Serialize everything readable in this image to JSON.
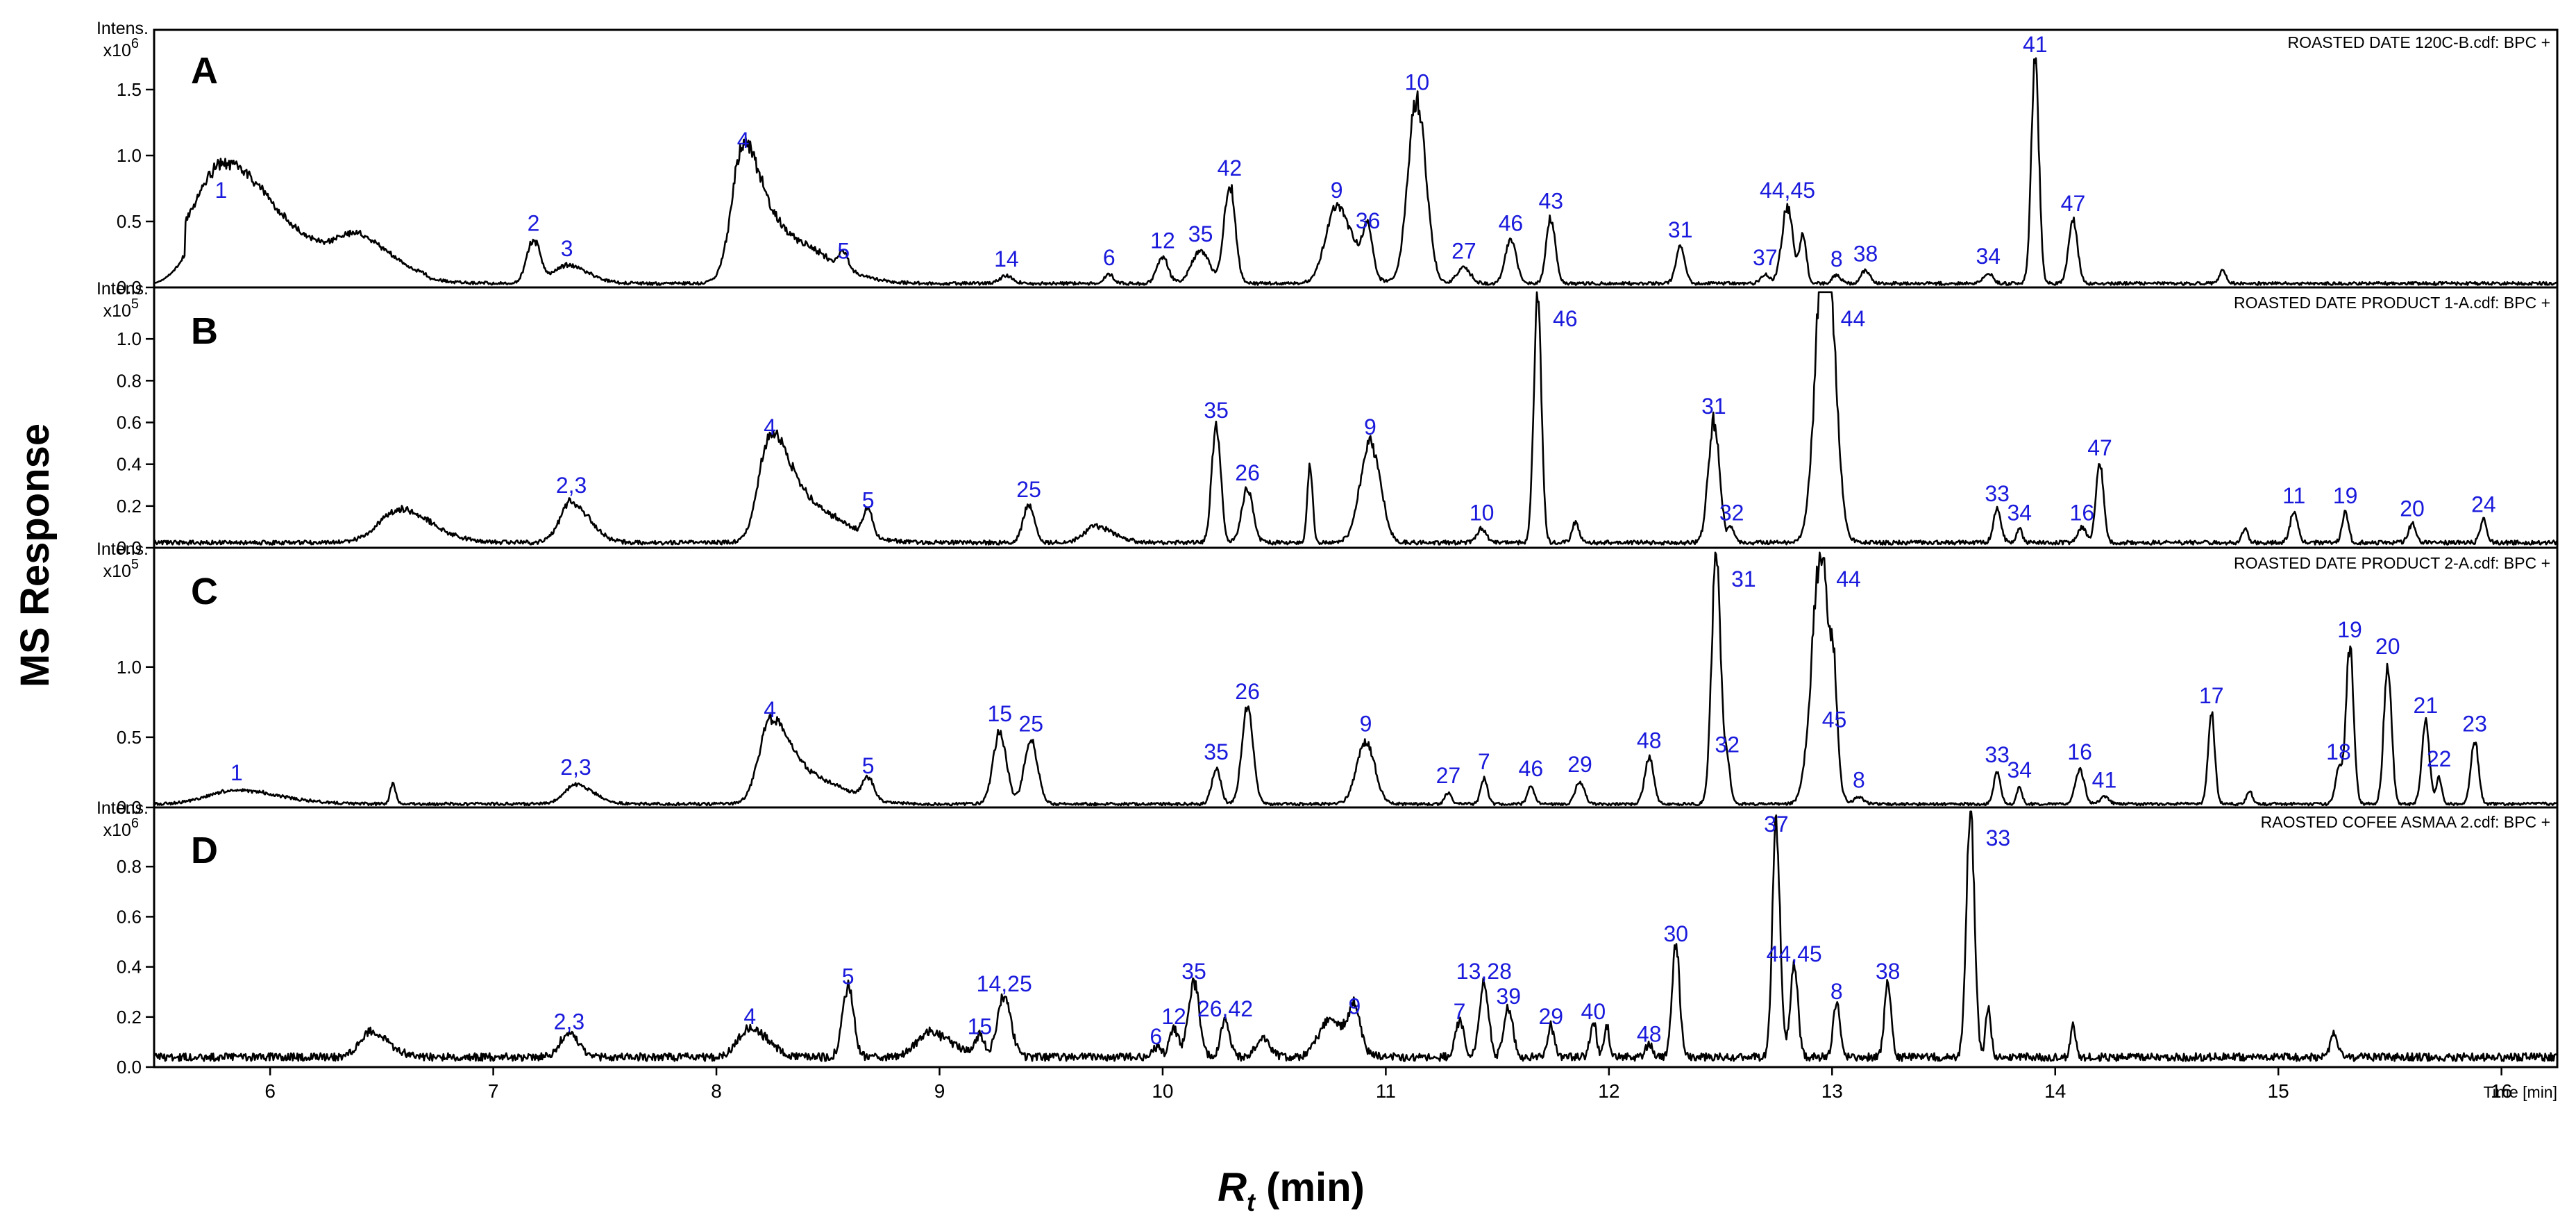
{
  "chart_data": {
    "type": "line",
    "subtype": "stacked chromatograms",
    "ylabel": "MS Response",
    "xlabel_main": "R",
    "xlabel_sub": "t",
    "xlabel_unit": " (min)",
    "xaxis_unit_label": "Time [min]",
    "xlim": [
      5.48,
      16.25
    ],
    "xticks": [
      6,
      7,
      8,
      9,
      10,
      11,
      12,
      13,
      14,
      15,
      16
    ],
    "panels": [
      {
        "letter": "A",
        "file": "ROASTED DATE 120C-B.cdf: BPC +",
        "intens": "Intens.",
        "scale_base": "x10",
        "scale_exp": "6",
        "ylim": [
          0,
          1.9
        ],
        "yticks": [
          "0.0",
          "0.5",
          "1.0",
          "1.5"
        ],
        "ytick_values": [
          0,
          0.5,
          1.0,
          1.5
        ],
        "baseline": 0.03,
        "peaks": [
          {
            "label": "1",
            "rt": 5.78,
            "h": 0.58,
            "w": 0.11
          },
          {
            "label": "",
            "rt": 5.98,
            "h": 0.28,
            "w": 0.2
          },
          {
            "label": "",
            "rt": 6.4,
            "h": 0.22,
            "w": 0.09
          },
          {
            "label": "2",
            "rt": 7.18,
            "h": 0.33,
            "w": 0.03
          },
          {
            "label": "3",
            "rt": 7.33,
            "h": 0.14,
            "w": 0.06
          },
          {
            "label": "4",
            "rt": 8.12,
            "h": 0.96,
            "w": 0.05
          },
          {
            "label": "",
            "rt": 8.3,
            "h": 0.35,
            "w": 0.12
          },
          {
            "label": "5",
            "rt": 8.57,
            "h": 0.12,
            "w": 0.02
          },
          {
            "label": "14",
            "rt": 9.3,
            "h": 0.06,
            "w": 0.03
          },
          {
            "label": "6",
            "rt": 9.76,
            "h": 0.07,
            "w": 0.02
          },
          {
            "label": "12",
            "rt": 10.0,
            "h": 0.2,
            "w": 0.025
          },
          {
            "label": "35",
            "rt": 10.17,
            "h": 0.25,
            "w": 0.04
          },
          {
            "label": "42",
            "rt": 10.3,
            "h": 0.75,
            "w": 0.025
          },
          {
            "label": "9",
            "rt": 10.78,
            "h": 0.58,
            "w": 0.05
          },
          {
            "label": "36",
            "rt": 10.92,
            "h": 0.35,
            "w": 0.02
          },
          {
            "label": "10",
            "rt": 11.14,
            "h": 1.4,
            "w": 0.04
          },
          {
            "label": "27",
            "rt": 11.35,
            "h": 0.12,
            "w": 0.03
          },
          {
            "label": "46",
            "rt": 11.56,
            "h": 0.33,
            "w": 0.025
          },
          {
            "label": "43",
            "rt": 11.74,
            "h": 0.5,
            "w": 0.02
          },
          {
            "label": "31",
            "rt": 12.32,
            "h": 0.28,
            "w": 0.02
          },
          {
            "label": "37",
            "rt": 12.7,
            "h": 0.07,
            "w": 0.02
          },
          {
            "label": "44,45",
            "rt": 12.8,
            "h": 0.58,
            "w": 0.025
          },
          {
            "label": "",
            "rt": 12.87,
            "h": 0.35,
            "w": 0.015
          },
          {
            "label": "8",
            "rt": 13.02,
            "h": 0.06,
            "w": 0.02
          },
          {
            "label": "38",
            "rt": 13.15,
            "h": 0.1,
            "w": 0.02
          },
          {
            "label": "34",
            "rt": 13.7,
            "h": 0.08,
            "w": 0.02
          },
          {
            "label": "41",
            "rt": 13.91,
            "h": 1.7,
            "w": 0.017
          },
          {
            "label": "47",
            "rt": 14.08,
            "h": 0.48,
            "w": 0.02
          },
          {
            "label": "",
            "rt": 14.75,
            "h": 0.1,
            "w": 0.015
          }
        ]
      },
      {
        "letter": "B",
        "file": "ROASTED DATE PRODUCT 1-A.cdf: BPC +",
        "intens": "Intens.",
        "scale_base": "x10",
        "scale_exp": "5",
        "ylim": [
          0,
          1.2
        ],
        "yticks": [
          "0.0",
          "0.2",
          "0.4",
          "0.6",
          "0.8",
          "1.0"
        ],
        "ytick_values": [
          0,
          0.2,
          0.4,
          0.6,
          0.8,
          1.0
        ],
        "baseline": 0.025,
        "peaks": [
          {
            "label": "",
            "rt": 6.58,
            "h": 0.16,
            "w": 0.09
          },
          {
            "label": "2,3",
            "rt": 7.35,
            "h": 0.2,
            "w": 0.05
          },
          {
            "label": "4",
            "rt": 8.24,
            "h": 0.48,
            "w": 0.05
          },
          {
            "label": "",
            "rt": 8.4,
            "h": 0.18,
            "w": 0.1
          },
          {
            "label": "5",
            "rt": 8.68,
            "h": 0.13,
            "w": 0.02
          },
          {
            "label": "25",
            "rt": 9.4,
            "h": 0.18,
            "w": 0.025
          },
          {
            "label": "",
            "rt": 9.7,
            "h": 0.08,
            "w": 0.05
          },
          {
            "label": "35",
            "rt": 10.24,
            "h": 0.56,
            "w": 0.02
          },
          {
            "label": "26",
            "rt": 10.38,
            "h": 0.26,
            "w": 0.025
          },
          {
            "label": "",
            "rt": 10.66,
            "h": 0.36,
            "w": 0.012
          },
          {
            "label": "9",
            "rt": 10.93,
            "h": 0.48,
            "w": 0.045
          },
          {
            "label": "10",
            "rt": 11.43,
            "h": 0.07,
            "w": 0.02
          },
          {
            "label": "46",
            "rt": 11.68,
            "h": 1.2,
            "w": 0.017
          },
          {
            "label": "",
            "rt": 11.85,
            "h": 0.1,
            "w": 0.015
          },
          {
            "label": "31",
            "rt": 12.47,
            "h": 0.58,
            "w": 0.025
          },
          {
            "label": "32",
            "rt": 12.55,
            "h": 0.07,
            "w": 0.015
          },
          {
            "label": "44",
            "rt": 12.97,
            "h": 1.6,
            "w": 0.04
          },
          {
            "label": "33",
            "rt": 13.74,
            "h": 0.16,
            "w": 0.017
          },
          {
            "label": "34",
            "rt": 13.84,
            "h": 0.07,
            "w": 0.012
          },
          {
            "label": "16",
            "rt": 14.12,
            "h": 0.07,
            "w": 0.02
          },
          {
            "label": "47",
            "rt": 14.2,
            "h": 0.38,
            "w": 0.017
          },
          {
            "label": "",
            "rt": 14.85,
            "h": 0.07,
            "w": 0.012
          },
          {
            "label": "11",
            "rt": 15.07,
            "h": 0.15,
            "w": 0.017
          },
          {
            "label": "19",
            "rt": 15.3,
            "h": 0.15,
            "w": 0.014
          },
          {
            "label": "20",
            "rt": 15.6,
            "h": 0.09,
            "w": 0.017
          },
          {
            "label": "24",
            "rt": 15.92,
            "h": 0.11,
            "w": 0.015
          }
        ]
      },
      {
        "letter": "C",
        "file": "ROASTED DATE PRODUCT 2-A.cdf: BPC +",
        "intens": "Intens.",
        "scale_base": "x10",
        "scale_exp": "5",
        "ylim": [
          0,
          1.78
        ],
        "yticks": [
          "0.0",
          "0.5",
          "1.0"
        ],
        "ytick_values": [
          0,
          0.5,
          1.0
        ],
        "baseline": 0.025,
        "peaks": [
          {
            "label": "1",
            "rt": 5.85,
            "h": 0.1,
            "w": 0.12
          },
          {
            "label": "",
            "rt": 6.55,
            "h": 0.15,
            "w": 0.012
          },
          {
            "label": "2,3",
            "rt": 7.37,
            "h": 0.14,
            "w": 0.05
          },
          {
            "label": "4",
            "rt": 8.24,
            "h": 0.55,
            "w": 0.05
          },
          {
            "label": "",
            "rt": 8.4,
            "h": 0.2,
            "w": 0.1
          },
          {
            "label": "5",
            "rt": 8.68,
            "h": 0.15,
            "w": 0.025
          },
          {
            "label": "15",
            "rt": 9.27,
            "h": 0.52,
            "w": 0.03
          },
          {
            "label": "25",
            "rt": 9.41,
            "h": 0.45,
            "w": 0.03
          },
          {
            "label": "35",
            "rt": 10.24,
            "h": 0.25,
            "w": 0.02
          },
          {
            "label": "26",
            "rt": 10.38,
            "h": 0.68,
            "w": 0.025
          },
          {
            "label": "9",
            "rt": 10.91,
            "h": 0.45,
            "w": 0.04
          },
          {
            "label": "27",
            "rt": 11.28,
            "h": 0.08,
            "w": 0.015
          },
          {
            "label": "7",
            "rt": 11.44,
            "h": 0.18,
            "w": 0.015
          },
          {
            "label": "46",
            "rt": 11.65,
            "h": 0.13,
            "w": 0.015
          },
          {
            "label": "29",
            "rt": 11.87,
            "h": 0.16,
            "w": 0.02
          },
          {
            "label": "48",
            "rt": 12.18,
            "h": 0.33,
            "w": 0.02
          },
          {
            "label": "31",
            "rt": 12.48,
            "h": 1.78,
            "w": 0.02
          },
          {
            "label": "32",
            "rt": 12.53,
            "h": 0.3,
            "w": 0.014
          },
          {
            "label": "44",
            "rt": 12.95,
            "h": 1.78,
            "w": 0.04
          },
          {
            "label": "45",
            "rt": 13.01,
            "h": 0.48,
            "w": 0.014
          },
          {
            "label": "8",
            "rt": 13.12,
            "h": 0.05,
            "w": 0.02
          },
          {
            "label": "33",
            "rt": 13.74,
            "h": 0.23,
            "w": 0.015
          },
          {
            "label": "34",
            "rt": 13.84,
            "h": 0.12,
            "w": 0.012
          },
          {
            "label": "16",
            "rt": 14.11,
            "h": 0.25,
            "w": 0.02
          },
          {
            "label": "41",
            "rt": 14.22,
            "h": 0.05,
            "w": 0.02
          },
          {
            "label": "17",
            "rt": 14.7,
            "h": 0.65,
            "w": 0.015
          },
          {
            "label": "",
            "rt": 14.87,
            "h": 0.1,
            "w": 0.012
          },
          {
            "label": "18",
            "rt": 15.27,
            "h": 0.25,
            "w": 0.015
          },
          {
            "label": "19",
            "rt": 15.32,
            "h": 1.12,
            "w": 0.017
          },
          {
            "label": "20",
            "rt": 15.49,
            "h": 1.0,
            "w": 0.017
          },
          {
            "label": "21",
            "rt": 15.66,
            "h": 0.58,
            "w": 0.017
          },
          {
            "label": "22",
            "rt": 15.72,
            "h": 0.2,
            "w": 0.012
          },
          {
            "label": "23",
            "rt": 15.88,
            "h": 0.45,
            "w": 0.017
          }
        ]
      },
      {
        "letter": "D",
        "file": "RAOSTED COFEE ASMAA 2.cdf: BPC +",
        "intens": "Intens.",
        "scale_base": "x10",
        "scale_exp": "6",
        "ylim": [
          0,
          1.0
        ],
        "yticks": [
          "0.0",
          "0.2",
          "0.4",
          "0.6",
          "0.8"
        ],
        "ytick_values": [
          0,
          0.2,
          0.4,
          0.6,
          0.8
        ],
        "baseline": 0.04,
        "peaks": [
          {
            "label": "",
            "rt": 6.45,
            "h": 0.1,
            "w": 0.05
          },
          {
            "label": "2,3",
            "rt": 7.34,
            "h": 0.1,
            "w": 0.04
          },
          {
            "label": "4",
            "rt": 8.15,
            "h": 0.12,
            "w": 0.05
          },
          {
            "label": "5",
            "rt": 8.59,
            "h": 0.28,
            "w": 0.025
          },
          {
            "label": "",
            "rt": 8.96,
            "h": 0.1,
            "w": 0.06
          },
          {
            "label": "15",
            "rt": 9.18,
            "h": 0.08,
            "w": 0.02
          },
          {
            "label": "14,25",
            "rt": 9.29,
            "h": 0.25,
            "w": 0.03
          },
          {
            "label": "6",
            "rt": 9.97,
            "h": 0.04,
            "w": 0.02
          },
          {
            "label": "12",
            "rt": 10.05,
            "h": 0.12,
            "w": 0.02
          },
          {
            "label": "35",
            "rt": 10.14,
            "h": 0.3,
            "w": 0.025
          },
          {
            "label": "26,42",
            "rt": 10.28,
            "h": 0.15,
            "w": 0.02
          },
          {
            "label": "",
            "rt": 10.45,
            "h": 0.08,
            "w": 0.03
          },
          {
            "label": "",
            "rt": 10.75,
            "h": 0.15,
            "w": 0.05
          },
          {
            "label": "9",
            "rt": 10.86,
            "h": 0.16,
            "w": 0.025
          },
          {
            "label": "7",
            "rt": 11.33,
            "h": 0.14,
            "w": 0.02
          },
          {
            "label": "13,28",
            "rt": 11.44,
            "h": 0.3,
            "w": 0.02
          },
          {
            "label": "39",
            "rt": 11.55,
            "h": 0.2,
            "w": 0.02
          },
          {
            "label": "29",
            "rt": 11.74,
            "h": 0.12,
            "w": 0.015
          },
          {
            "label": "40",
            "rt": 11.93,
            "h": 0.14,
            "w": 0.014
          },
          {
            "label": "",
            "rt": 11.99,
            "h": 0.12,
            "w": 0.012
          },
          {
            "label": "48",
            "rt": 12.18,
            "h": 0.05,
            "w": 0.015
          },
          {
            "label": "30",
            "rt": 12.3,
            "h": 0.45,
            "w": 0.017
          },
          {
            "label": "37",
            "rt": 12.75,
            "h": 0.93,
            "w": 0.017
          },
          {
            "label": "44,45",
            "rt": 12.83,
            "h": 0.37,
            "w": 0.017
          },
          {
            "label": "8",
            "rt": 13.02,
            "h": 0.22,
            "w": 0.015
          },
          {
            "label": "38",
            "rt": 13.25,
            "h": 0.3,
            "w": 0.015
          },
          {
            "label": "33",
            "rt": 13.62,
            "h": 1.0,
            "w": 0.018
          },
          {
            "label": "",
            "rt": 13.7,
            "h": 0.2,
            "w": 0.012
          },
          {
            "label": "",
            "rt": 14.08,
            "h": 0.12,
            "w": 0.012
          },
          {
            "label": "",
            "rt": 15.25,
            "h": 0.1,
            "w": 0.015
          }
        ]
      }
    ]
  }
}
